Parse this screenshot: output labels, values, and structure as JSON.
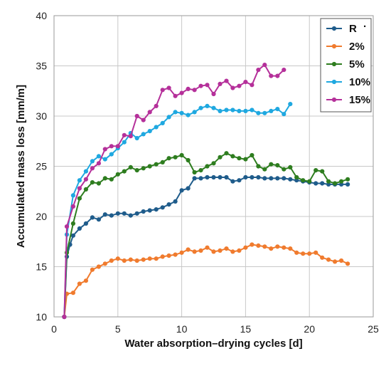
{
  "chart_data": {
    "type": "line",
    "xlabel": "Water absorption–drying cycles [d]",
    "ylabel": "Accumulated mass loss [mm/m]",
    "xlim": [
      0,
      25
    ],
    "ylim": [
      10,
      40
    ],
    "xticks": [
      "0",
      "5",
      "10",
      "15",
      "20",
      "25"
    ],
    "yticks": [
      "10",
      "15",
      "20",
      "25",
      "30",
      "35",
      "40"
    ],
    "grid": true,
    "legend_position": "top-right",
    "legend_marker": "·",
    "series": [
      {
        "name": "R",
        "color": "#1f5c8b",
        "points": [
          [
            0.8,
            10.0
          ],
          [
            1.0,
            16.0
          ],
          [
            1.25,
            17.2
          ],
          [
            1.5,
            18.1
          ],
          [
            2.0,
            18.8
          ],
          [
            2.5,
            19.3
          ],
          [
            3.0,
            19.9
          ],
          [
            3.5,
            19.7
          ],
          [
            4.0,
            20.2
          ],
          [
            4.5,
            20.1
          ],
          [
            5.0,
            20.3
          ],
          [
            5.5,
            20.3
          ],
          [
            6.0,
            20.1
          ],
          [
            6.5,
            20.3
          ],
          [
            7.0,
            20.5
          ],
          [
            7.5,
            20.6
          ],
          [
            8.0,
            20.7
          ],
          [
            8.5,
            20.9
          ],
          [
            9.0,
            21.2
          ],
          [
            9.5,
            21.5
          ],
          [
            10.0,
            22.6
          ],
          [
            10.5,
            22.8
          ],
          [
            11.0,
            23.8
          ],
          [
            11.5,
            23.8
          ],
          [
            12.0,
            23.9
          ],
          [
            12.5,
            23.9
          ],
          [
            13.0,
            23.9
          ],
          [
            13.5,
            23.9
          ],
          [
            14.0,
            23.5
          ],
          [
            14.5,
            23.6
          ],
          [
            15.0,
            23.9
          ],
          [
            15.5,
            23.9
          ],
          [
            16.0,
            23.9
          ],
          [
            16.5,
            23.8
          ],
          [
            17.0,
            23.8
          ],
          [
            17.5,
            23.8
          ],
          [
            18.0,
            23.8
          ],
          [
            18.5,
            23.7
          ],
          [
            19.0,
            23.6
          ],
          [
            19.5,
            23.5
          ],
          [
            20.0,
            23.4
          ],
          [
            20.5,
            23.3
          ],
          [
            21.0,
            23.3
          ],
          [
            21.5,
            23.2
          ],
          [
            22.0,
            23.2
          ],
          [
            22.5,
            23.2
          ],
          [
            23.0,
            23.2
          ]
        ]
      },
      {
        "name": "2%",
        "color": "#f07b2e",
        "points": [
          [
            0.8,
            10.0
          ],
          [
            1.0,
            12.3
          ],
          [
            1.5,
            12.4
          ],
          [
            2.0,
            13.3
          ],
          [
            2.5,
            13.6
          ],
          [
            3.0,
            14.7
          ],
          [
            3.5,
            15.0
          ],
          [
            4.0,
            15.3
          ],
          [
            4.5,
            15.6
          ],
          [
            5.0,
            15.8
          ],
          [
            5.5,
            15.6
          ],
          [
            6.0,
            15.7
          ],
          [
            6.5,
            15.6
          ],
          [
            7.0,
            15.7
          ],
          [
            7.5,
            15.8
          ],
          [
            8.0,
            15.8
          ],
          [
            8.5,
            16.0
          ],
          [
            9.0,
            16.1
          ],
          [
            9.5,
            16.2
          ],
          [
            10.0,
            16.4
          ],
          [
            10.5,
            16.7
          ],
          [
            11.0,
            16.5
          ],
          [
            11.5,
            16.6
          ],
          [
            12.0,
            16.9
          ],
          [
            12.5,
            16.5
          ],
          [
            13.0,
            16.6
          ],
          [
            13.5,
            16.8
          ],
          [
            14.0,
            16.5
          ],
          [
            14.5,
            16.6
          ],
          [
            15.0,
            16.9
          ],
          [
            15.5,
            17.2
          ],
          [
            16.0,
            17.1
          ],
          [
            16.5,
            17.0
          ],
          [
            17.0,
            16.8
          ],
          [
            17.5,
            17.0
          ],
          [
            18.0,
            16.9
          ],
          [
            18.5,
            16.8
          ],
          [
            19.0,
            16.4
          ],
          [
            19.5,
            16.3
          ],
          [
            20.0,
            16.3
          ],
          [
            20.5,
            16.4
          ],
          [
            21.0,
            15.9
          ],
          [
            21.5,
            15.7
          ],
          [
            22.0,
            15.5
          ],
          [
            22.5,
            15.6
          ],
          [
            23.0,
            15.3
          ]
        ]
      },
      {
        "name": "5%",
        "color": "#2e7d1f",
        "points": [
          [
            0.8,
            10.0
          ],
          [
            1.0,
            16.4
          ],
          [
            1.5,
            19.3
          ],
          [
            2.0,
            21.8
          ],
          [
            2.5,
            22.7
          ],
          [
            3.0,
            23.4
          ],
          [
            3.5,
            23.3
          ],
          [
            4.0,
            23.8
          ],
          [
            4.5,
            23.7
          ],
          [
            5.0,
            24.2
          ],
          [
            5.5,
            24.5
          ],
          [
            6.0,
            24.9
          ],
          [
            6.5,
            24.6
          ],
          [
            7.0,
            24.8
          ],
          [
            7.5,
            25.0
          ],
          [
            8.0,
            25.2
          ],
          [
            8.5,
            25.4
          ],
          [
            9.0,
            25.8
          ],
          [
            9.5,
            25.9
          ],
          [
            10.0,
            26.1
          ],
          [
            10.5,
            25.6
          ],
          [
            11.0,
            24.4
          ],
          [
            11.5,
            24.6
          ],
          [
            12.0,
            25.0
          ],
          [
            12.5,
            25.3
          ],
          [
            13.0,
            25.9
          ],
          [
            13.5,
            26.3
          ],
          [
            14.0,
            26.0
          ],
          [
            14.5,
            25.8
          ],
          [
            15.0,
            25.7
          ],
          [
            15.5,
            26.1
          ],
          [
            16.0,
            25.0
          ],
          [
            16.5,
            24.7
          ],
          [
            17.0,
            25.2
          ],
          [
            17.5,
            25.1
          ],
          [
            18.0,
            24.7
          ],
          [
            18.5,
            24.9
          ],
          [
            19.0,
            23.9
          ],
          [
            19.5,
            23.6
          ],
          [
            20.0,
            23.5
          ],
          [
            20.5,
            24.6
          ],
          [
            21.0,
            24.5
          ],
          [
            21.5,
            23.5
          ],
          [
            22.0,
            23.3
          ],
          [
            22.5,
            23.5
          ],
          [
            23.0,
            23.7
          ]
        ]
      },
      {
        "name": "10%",
        "color": "#1fa8e0",
        "points": [
          [
            0.8,
            10.0
          ],
          [
            1.0,
            18.2
          ],
          [
            1.5,
            22.1
          ],
          [
            2.0,
            23.6
          ],
          [
            2.5,
            24.5
          ],
          [
            3.0,
            25.5
          ],
          [
            3.5,
            26.0
          ],
          [
            4.0,
            25.7
          ],
          [
            4.5,
            26.2
          ],
          [
            5.0,
            26.8
          ],
          [
            5.5,
            27.4
          ],
          [
            6.0,
            28.3
          ],
          [
            6.5,
            27.8
          ],
          [
            7.0,
            28.2
          ],
          [
            7.5,
            28.5
          ],
          [
            8.0,
            28.9
          ],
          [
            8.5,
            29.3
          ],
          [
            9.0,
            29.9
          ],
          [
            9.5,
            30.4
          ],
          [
            10.0,
            30.3
          ],
          [
            10.5,
            30.1
          ],
          [
            11.0,
            30.4
          ],
          [
            11.5,
            30.8
          ],
          [
            12.0,
            31.0
          ],
          [
            12.5,
            30.8
          ],
          [
            13.0,
            30.5
          ],
          [
            13.5,
            30.6
          ],
          [
            14.0,
            30.6
          ],
          [
            14.5,
            30.5
          ],
          [
            15.0,
            30.5
          ],
          [
            15.5,
            30.6
          ],
          [
            16.0,
            30.3
          ],
          [
            16.5,
            30.3
          ],
          [
            17.0,
            30.5
          ],
          [
            17.5,
            30.7
          ],
          [
            18.0,
            30.2
          ],
          [
            18.5,
            31.2
          ]
        ]
      },
      {
        "name": "15%",
        "color": "#b5309a",
        "points": [
          [
            0.8,
            10.0
          ],
          [
            1.0,
            19.0
          ],
          [
            1.5,
            21.0
          ],
          [
            2.0,
            22.8
          ],
          [
            2.5,
            23.7
          ],
          [
            3.0,
            24.8
          ],
          [
            3.5,
            25.3
          ],
          [
            4.0,
            26.7
          ],
          [
            4.5,
            27.0
          ],
          [
            5.0,
            27.0
          ],
          [
            5.5,
            28.1
          ],
          [
            6.0,
            28.0
          ],
          [
            6.5,
            30.0
          ],
          [
            7.0,
            29.6
          ],
          [
            7.5,
            30.4
          ],
          [
            8.0,
            31.0
          ],
          [
            8.5,
            32.6
          ],
          [
            9.0,
            32.8
          ],
          [
            9.5,
            32.0
          ],
          [
            10.0,
            32.3
          ],
          [
            10.5,
            32.7
          ],
          [
            11.0,
            32.6
          ],
          [
            11.5,
            33.0
          ],
          [
            12.0,
            33.1
          ],
          [
            12.5,
            32.2
          ],
          [
            13.0,
            33.2
          ],
          [
            13.5,
            33.5
          ],
          [
            14.0,
            32.8
          ],
          [
            14.5,
            33.0
          ],
          [
            15.0,
            33.4
          ],
          [
            15.5,
            33.1
          ],
          [
            16.0,
            34.6
          ],
          [
            16.5,
            35.1
          ],
          [
            17.0,
            34.0
          ],
          [
            17.5,
            34.0
          ],
          [
            18.0,
            34.6
          ]
        ]
      }
    ]
  }
}
